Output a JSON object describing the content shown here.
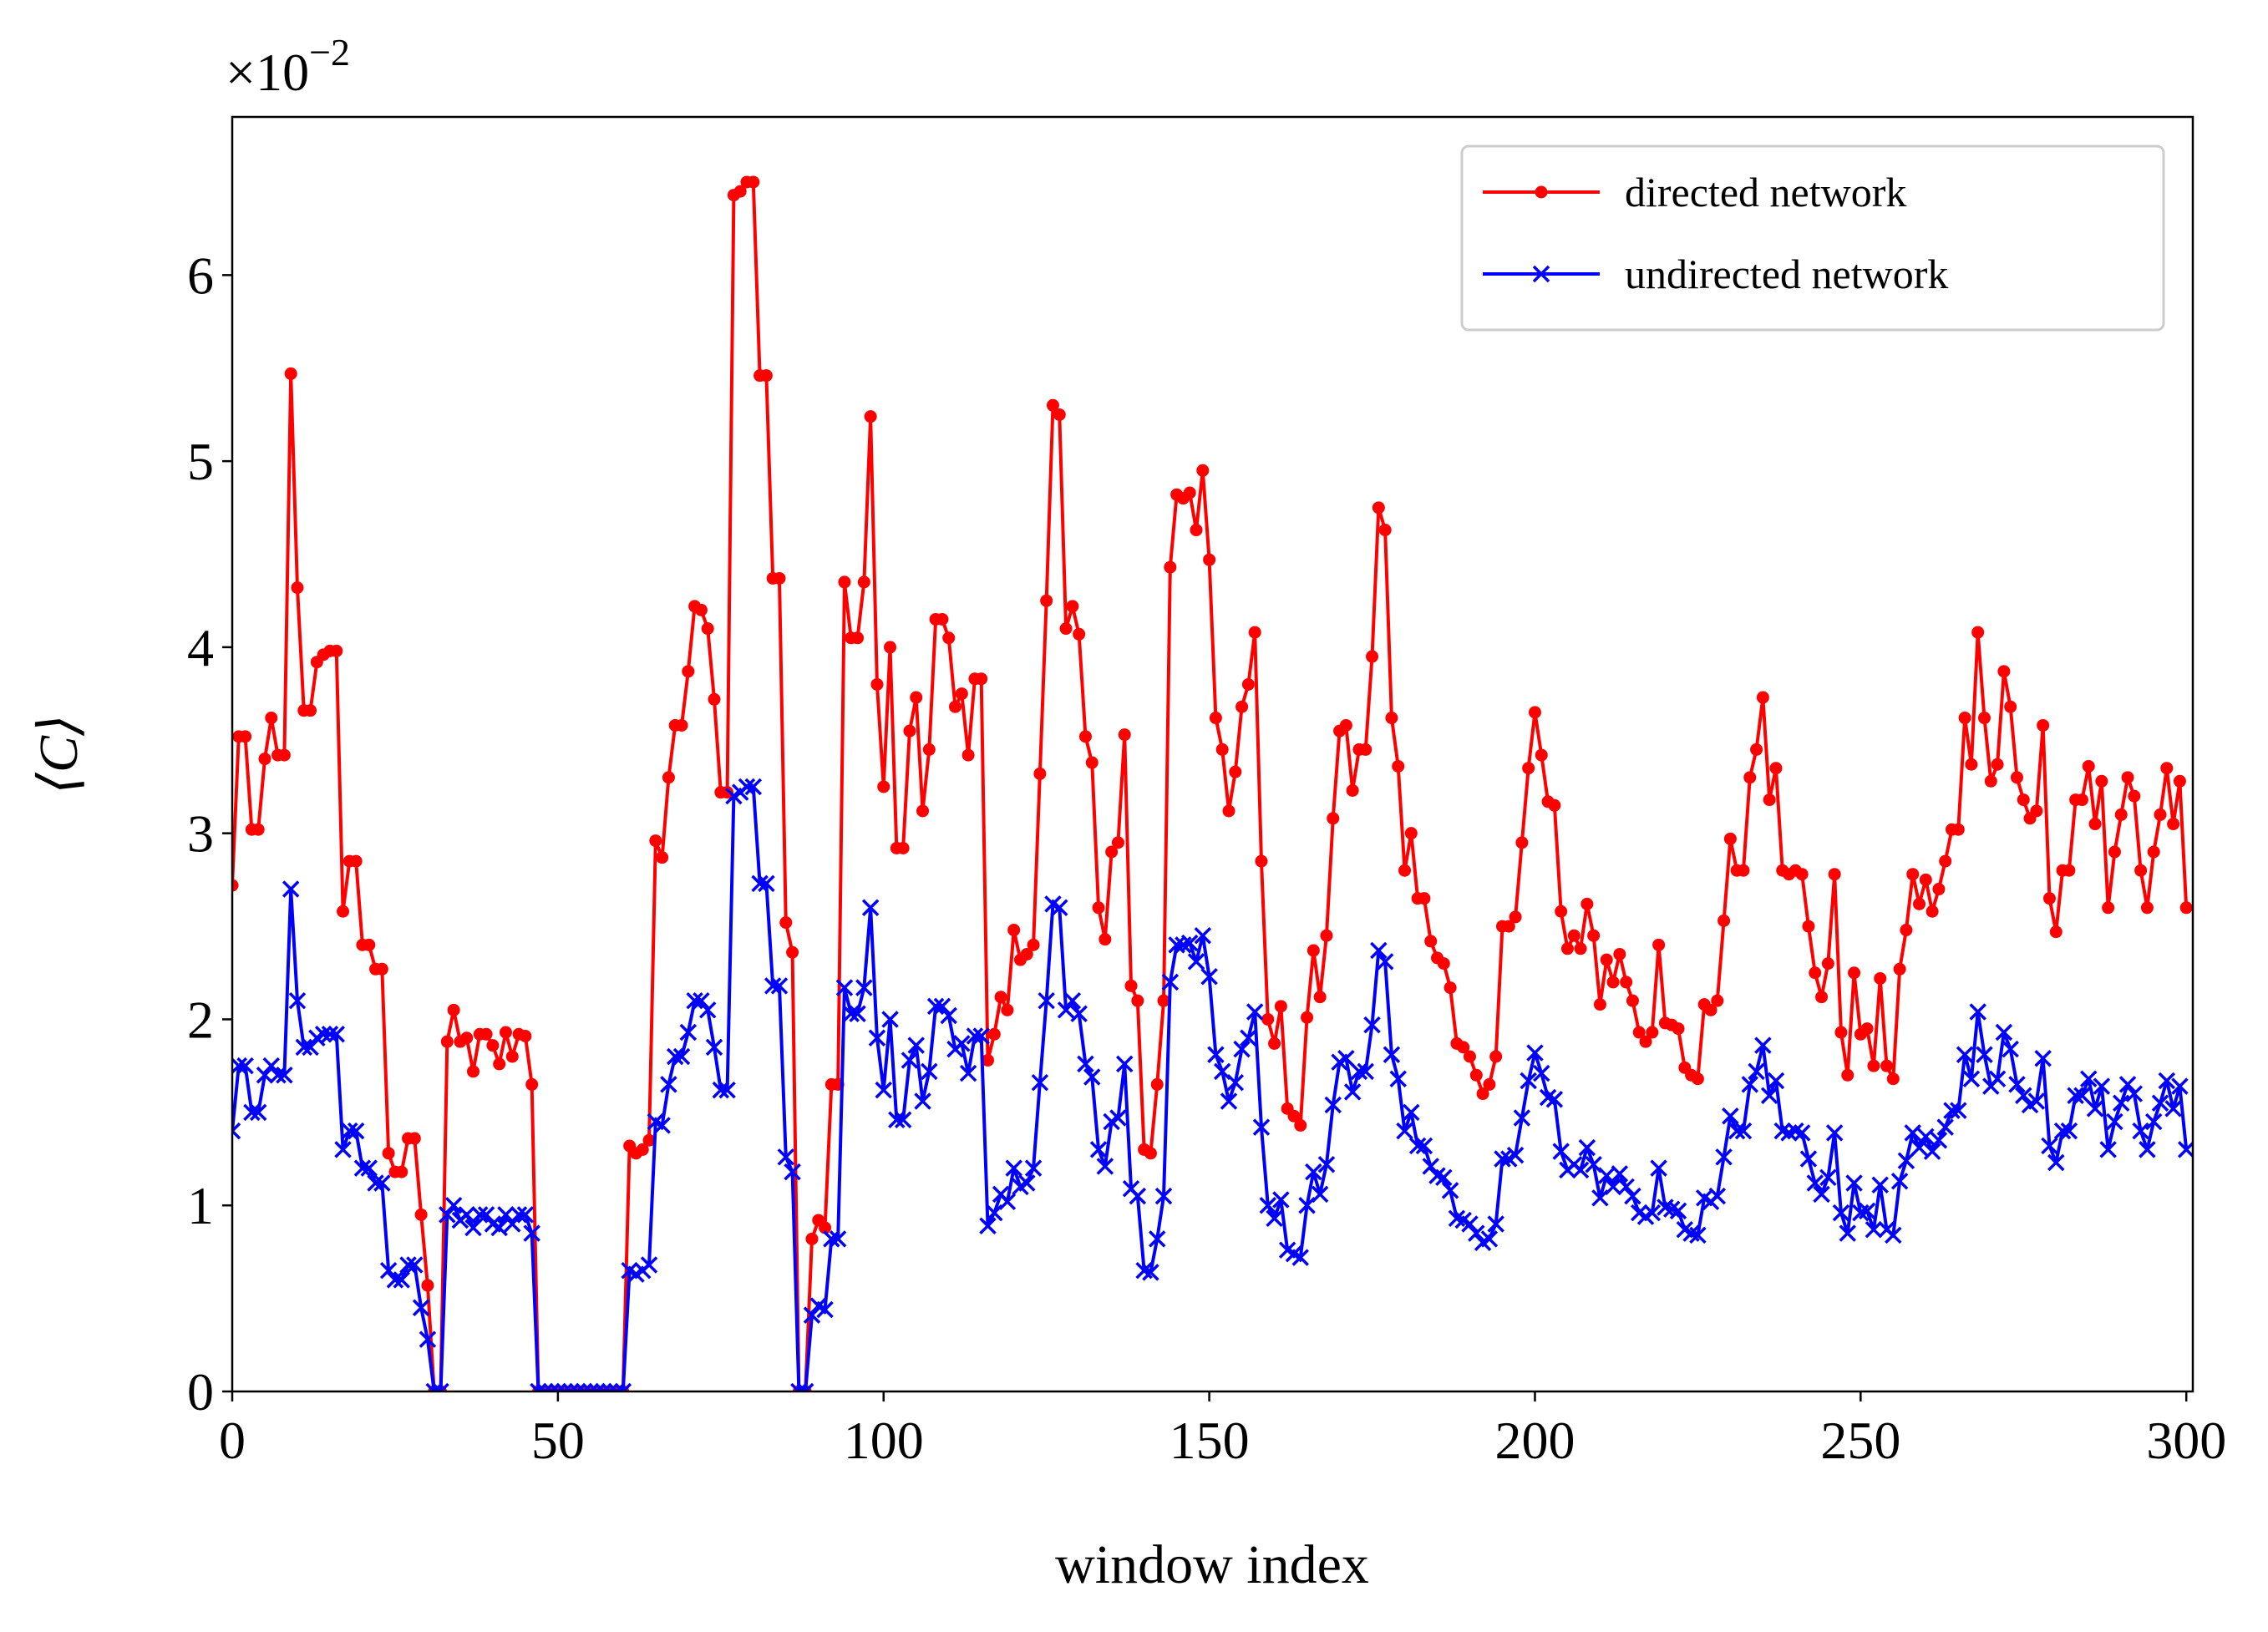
{
  "chart_data": {
    "type": "line",
    "xlabel": "window index",
    "ylabel": "⟨C⟩",
    "y_offset": {
      "base": "×10",
      "exponent": "−2"
    },
    "xlim": [
      0,
      301
    ],
    "ylim": [
      0,
      6.85
    ],
    "xticks": [
      0,
      50,
      100,
      150,
      200,
      250,
      300
    ],
    "yticks": [
      0,
      1,
      2,
      3,
      4,
      5,
      6
    ],
    "legend": "upper right",
    "x": [
      0,
      1,
      2,
      3,
      4,
      5,
      6,
      7,
      8,
      9,
      10,
      11,
      12,
      13,
      14,
      15,
      16,
      17,
      18,
      19,
      20,
      21,
      22,
      23,
      24,
      25,
      26,
      27,
      28,
      29,
      30,
      31,
      32,
      33,
      34,
      35,
      36,
      37,
      38,
      39,
      40,
      41,
      42,
      43,
      44,
      45,
      46,
      47,
      48,
      49,
      50,
      51,
      52,
      53,
      54,
      55,
      56,
      57,
      58,
      59,
      60,
      61,
      62,
      63,
      64,
      65,
      66,
      67,
      68,
      69,
      70,
      71,
      72,
      73,
      74,
      75,
      76,
      77,
      78,
      79,
      80,
      81,
      82,
      83,
      84,
      85,
      86,
      87,
      88,
      89,
      90,
      91,
      92,
      93,
      94,
      95,
      96,
      97,
      98,
      99,
      100,
      101,
      102,
      103,
      104,
      105,
      106,
      107,
      108,
      109,
      110,
      111,
      112,
      113,
      114,
      115,
      116,
      117,
      118,
      119,
      120,
      121,
      122,
      123,
      124,
      125,
      126,
      127,
      128,
      129,
      130,
      131,
      132,
      133,
      134,
      135,
      136,
      137,
      138,
      139,
      140,
      141,
      142,
      143,
      144,
      145,
      146,
      147,
      148,
      149,
      150,
      151,
      152,
      153,
      154,
      155,
      156,
      157,
      158,
      159,
      160,
      161,
      162,
      163,
      164,
      165,
      166,
      167,
      168,
      169,
      170,
      171,
      172,
      173,
      174,
      175,
      176,
      177,
      178,
      179,
      180,
      181,
      182,
      183,
      184,
      185,
      186,
      187,
      188,
      189,
      190,
      191,
      192,
      193,
      194,
      195,
      196,
      197,
      198,
      199,
      200,
      201,
      202,
      203,
      204,
      205,
      206,
      207,
      208,
      209,
      210,
      211,
      212,
      213,
      214,
      215,
      216,
      217,
      218,
      219,
      220,
      221,
      222,
      223,
      224,
      225,
      226,
      227,
      228,
      229,
      230,
      231,
      232,
      233,
      234,
      235,
      236,
      237,
      238,
      239,
      240,
      241,
      242,
      243,
      244,
      245,
      246,
      247,
      248,
      249,
      250,
      251,
      252,
      253,
      254,
      255,
      256,
      257,
      258,
      259,
      260,
      261,
      262,
      263,
      264,
      265,
      266,
      267,
      268,
      269,
      270,
      271,
      272,
      273,
      274,
      275,
      276,
      277,
      278,
      279,
      280,
      281,
      282,
      283,
      284,
      285,
      286,
      287,
      288,
      289,
      290,
      291,
      292,
      293,
      294,
      295,
      296,
      297,
      298,
      299,
      300
    ],
    "series": [
      {
        "name": "directed network",
        "color": "#ff0000",
        "marker": "circle",
        "values": [
          2.72,
          3.52,
          3.52,
          3.02,
          3.02,
          3.4,
          3.62,
          3.42,
          3.42,
          5.47,
          4.32,
          3.66,
          3.66,
          3.92,
          3.96,
          3.98,
          3.98,
          2.58,
          2.85,
          2.85,
          2.4,
          2.4,
          2.27,
          2.27,
          1.28,
          1.18,
          1.18,
          1.36,
          1.36,
          0.95,
          0.57,
          0,
          0,
          1.88,
          2.05,
          1.88,
          1.9,
          1.72,
          1.92,
          1.92,
          1.86,
          1.76,
          1.93,
          1.8,
          1.92,
          1.91,
          1.65,
          0,
          0,
          0,
          0,
          0,
          0,
          0,
          0,
          0,
          0,
          0,
          0,
          0,
          0,
          1.32,
          1.28,
          1.3,
          1.35,
          2.96,
          2.87,
          3.3,
          3.58,
          3.58,
          3.87,
          4.22,
          4.2,
          4.1,
          3.72,
          3.22,
          3.22,
          6.43,
          6.45,
          6.5,
          6.5,
          5.46,
          5.46,
          4.37,
          4.37,
          2.52,
          2.36,
          0,
          0,
          0.82,
          0.92,
          0.88,
          1.65,
          1.65,
          4.35,
          4.05,
          4.05,
          4.35,
          5.24,
          3.8,
          3.25,
          4.0,
          2.92,
          2.92,
          3.55,
          3.73,
          3.12,
          3.45,
          4.15,
          4.15,
          4.05,
          3.68,
          3.75,
          3.42,
          3.83,
          3.83,
          1.78,
          1.92,
          2.12,
          2.05,
          2.48,
          2.32,
          2.35,
          2.4,
          3.32,
          4.25,
          5.3,
          5.25,
          4.1,
          4.22,
          4.07,
          3.52,
          3.38,
          2.6,
          2.43,
          2.9,
          2.95,
          3.53,
          2.18,
          2.1,
          1.3,
          1.28,
          1.65,
          2.1,
          4.43,
          4.82,
          4.8,
          4.83,
          4.63,
          4.95,
          4.47,
          3.62,
          3.45,
          3.12,
          3.33,
          3.68,
          3.8,
          4.08,
          2.85,
          2.0,
          1.87,
          2.07,
          1.52,
          1.48,
          1.43,
          2.01,
          2.37,
          2.12,
          2.45,
          3.08,
          3.55,
          3.58,
          3.23,
          3.45,
          3.45,
          3.95,
          4.75,
          4.63,
          3.62,
          3.36,
          2.8,
          3.0,
          2.65,
          2.65,
          2.42,
          2.33,
          2.3,
          2.17,
          1.87,
          1.85,
          1.8,
          1.7,
          1.6,
          1.65,
          1.8,
          2.5,
          2.5,
          2.55,
          2.95,
          3.35,
          3.65,
          3.42,
          3.17,
          3.15,
          2.58,
          2.38,
          2.45,
          2.38,
          2.62,
          2.45,
          2.08,
          2.32,
          2.2,
          2.35,
          2.2,
          2.1,
          1.93,
          1.88,
          1.93,
          2.4,
          1.98,
          1.97,
          1.95,
          1.74,
          1.7,
          1.68,
          2.08,
          2.05,
          2.1,
          2.53,
          2.97,
          2.8,
          2.8,
          3.3,
          3.45,
          3.73,
          3.18,
          3.35,
          2.8,
          2.78,
          2.8,
          2.78,
          2.5,
          2.25,
          2.12,
          2.3,
          2.78,
          1.93,
          1.7,
          2.25,
          1.92,
          1.95,
          1.75,
          2.22,
          1.75,
          1.68,
          2.27,
          2.48,
          2.78,
          2.62,
          2.75,
          2.58,
          2.7,
          2.85,
          3.02,
          3.02,
          3.62,
          3.37,
          4.08,
          3.62,
          3.28,
          3.37,
          3.87,
          3.68,
          3.3,
          3.18,
          3.08,
          3.12,
          3.58,
          2.65,
          2.47,
          2.8,
          2.8,
          3.18,
          3.18,
          3.36,
          3.05,
          3.28,
          2.6,
          2.9,
          3.1,
          3.3,
          3.2,
          2.8,
          2.6,
          2.9,
          3.1,
          3.35,
          3.05,
          3.28,
          2.6
        ]
      },
      {
        "name": "undirected network",
        "color": "#0000ff",
        "marker": "x",
        "values": [
          1.4,
          1.75,
          1.75,
          1.5,
          1.5,
          1.7,
          1.75,
          1.7,
          1.7,
          2.7,
          2.1,
          1.85,
          1.85,
          1.9,
          1.92,
          1.92,
          1.92,
          1.3,
          1.4,
          1.4,
          1.2,
          1.2,
          1.12,
          1.12,
          0.65,
          0.6,
          0.6,
          0.68,
          0.68,
          0.45,
          0.28,
          0,
          0,
          0.95,
          1.0,
          0.92,
          0.95,
          0.88,
          0.95,
          0.95,
          0.9,
          0.88,
          0.95,
          0.9,
          0.95,
          0.95,
          0.85,
          0,
          0,
          0,
          0,
          0,
          0,
          0,
          0,
          0,
          0,
          0,
          0,
          0,
          0,
          0.65,
          0.63,
          0.65,
          0.68,
          1.45,
          1.43,
          1.65,
          1.8,
          1.8,
          1.93,
          2.1,
          2.1,
          2.05,
          1.85,
          1.62,
          1.62,
          3.2,
          3.22,
          3.25,
          3.25,
          2.73,
          2.73,
          2.18,
          2.18,
          1.26,
          1.18,
          0,
          0,
          0.41,
          0.46,
          0.44,
          0.82,
          0.82,
          2.17,
          2.03,
          2.03,
          2.17,
          2.6,
          1.9,
          1.62,
          2.0,
          1.46,
          1.46,
          1.78,
          1.86,
          1.56,
          1.72,
          2.07,
          2.07,
          2.02,
          1.84,
          1.87,
          1.71,
          1.91,
          1.91,
          0.89,
          0.96,
          1.06,
          1.02,
          1.2,
          1.1,
          1.12,
          1.2,
          1.66,
          2.1,
          2.62,
          2.6,
          2.05,
          2.1,
          2.03,
          1.76,
          1.69,
          1.3,
          1.21,
          1.45,
          1.47,
          1.76,
          1.09,
          1.05,
          0.65,
          0.64,
          0.82,
          1.05,
          2.2,
          2.4,
          2.4,
          2.41,
          2.31,
          2.45,
          2.23,
          1.81,
          1.72,
          1.56,
          1.66,
          1.84,
          1.9,
          2.04,
          1.42,
          1.0,
          0.93,
          1.03,
          0.76,
          0.74,
          0.72,
          1.0,
          1.18,
          1.06,
          1.22,
          1.54,
          1.77,
          1.79,
          1.61,
          1.72,
          1.72,
          1.97,
          2.37,
          2.31,
          1.81,
          1.68,
          1.4,
          1.5,
          1.32,
          1.32,
          1.21,
          1.16,
          1.15,
          1.08,
          0.93,
          0.92,
          0.9,
          0.85,
          0.8,
          0.82,
          0.9,
          1.25,
          1.25,
          1.27,
          1.47,
          1.67,
          1.82,
          1.71,
          1.58,
          1.57,
          1.29,
          1.19,
          1.22,
          1.19,
          1.31,
          1.22,
          1.04,
          1.16,
          1.1,
          1.17,
          1.1,
          1.05,
          0.96,
          0.94,
          0.96,
          1.2,
          0.99,
          0.98,
          0.97,
          0.87,
          0.85,
          0.84,
          1.04,
          1.02,
          1.05,
          1.26,
          1.48,
          1.4,
          1.4,
          1.65,
          1.72,
          1.86,
          1.59,
          1.67,
          1.4,
          1.39,
          1.4,
          1.39,
          1.25,
          1.12,
          1.06,
          1.15,
          1.39,
          0.96,
          0.85,
          1.12,
          0.96,
          0.97,
          0.87,
          1.11,
          0.87,
          0.84,
          1.13,
          1.24,
          1.39,
          1.31,
          1.37,
          1.29,
          1.35,
          1.42,
          1.51,
          1.51,
          1.81,
          1.68,
          2.04,
          1.81,
          1.64,
          1.68,
          1.93,
          1.84,
          1.65,
          1.59,
          1.54,
          1.56,
          1.79,
          1.32,
          1.23,
          1.4,
          1.4,
          1.59,
          1.59,
          1.68,
          1.52,
          1.64,
          1.3,
          1.45,
          1.55,
          1.65,
          1.6,
          1.4,
          1.3,
          1.45,
          1.55,
          1.67,
          1.52,
          1.64,
          1.3
        ]
      }
    ]
  }
}
